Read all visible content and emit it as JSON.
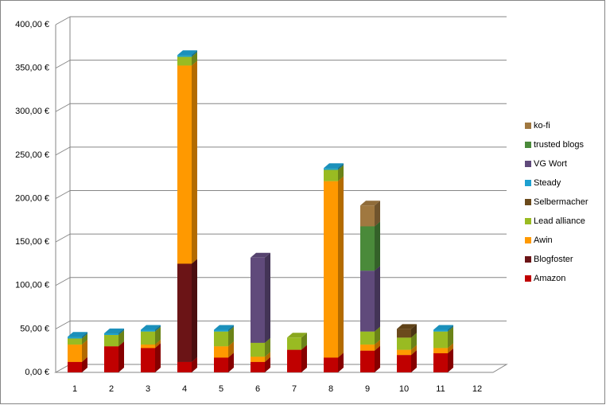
{
  "chart_data": {
    "type": "bar3d_stacked",
    "categories": [
      "1",
      "2",
      "3",
      "4",
      "5",
      "6",
      "7",
      "8",
      "9",
      "10",
      "11",
      "12"
    ],
    "series": [
      {
        "name": "Amazon",
        "color": "#c00000",
        "values": [
          12,
          30,
          28,
          12,
          17,
          12,
          26,
          17,
          25,
          20,
          22,
          null
        ]
      },
      {
        "name": "Blogfoster",
        "color": "#6b1416",
        "values": [
          null,
          null,
          null,
          113,
          null,
          null,
          null,
          null,
          null,
          null,
          null,
          null
        ]
      },
      {
        "name": "Awin",
        "color": "#ff9900",
        "values": [
          20,
          null,
          4,
          228,
          13,
          6,
          null,
          203,
          7,
          6,
          6,
          null
        ]
      },
      {
        "name": "Lead alliance",
        "color": "#99bb22",
        "values": [
          7,
          13,
          15,
          10,
          17,
          16,
          14,
          13,
          15,
          14,
          19,
          null
        ]
      },
      {
        "name": "Selbermacher",
        "color": "#6b4a1c",
        "values": [
          null,
          null,
          null,
          null,
          null,
          null,
          null,
          null,
          null,
          10,
          null,
          null
        ]
      },
      {
        "name": "Steady",
        "color": "#1ea0d0",
        "values": [
          2,
          2,
          2,
          2,
          2,
          null,
          null,
          2,
          null,
          null,
          2,
          null
        ]
      },
      {
        "name": "VG Wort",
        "color": "#604a7b",
        "values": [
          null,
          null,
          null,
          null,
          null,
          98,
          null,
          null,
          70,
          null,
          null,
          null
        ]
      },
      {
        "name": "trusted blogs",
        "color": "#4a8a3a",
        "values": [
          null,
          null,
          null,
          null,
          null,
          null,
          null,
          null,
          51,
          null,
          null,
          null
        ]
      },
      {
        "name": "ko-fi",
        "color": "#a07840",
        "values": [
          null,
          null,
          null,
          null,
          null,
          null,
          null,
          null,
          24,
          null,
          null,
          null
        ]
      }
    ],
    "ylim": [
      0,
      400
    ],
    "yticks": [
      {
        "value": 0,
        "label": "0,00 €"
      },
      {
        "value": 50,
        "label": "50,00 €"
      },
      {
        "value": 100,
        "label": "100,00 €"
      },
      {
        "value": 150,
        "label": "150,00 €"
      },
      {
        "value": 200,
        "label": "200,00 €"
      },
      {
        "value": 250,
        "label": "250,00 €"
      },
      {
        "value": 300,
        "label": "300,00 €"
      },
      {
        "value": 350,
        "label": "350,00 €"
      },
      {
        "value": 400,
        "label": "400,00 €"
      }
    ],
    "grid": true,
    "legend": "right"
  }
}
